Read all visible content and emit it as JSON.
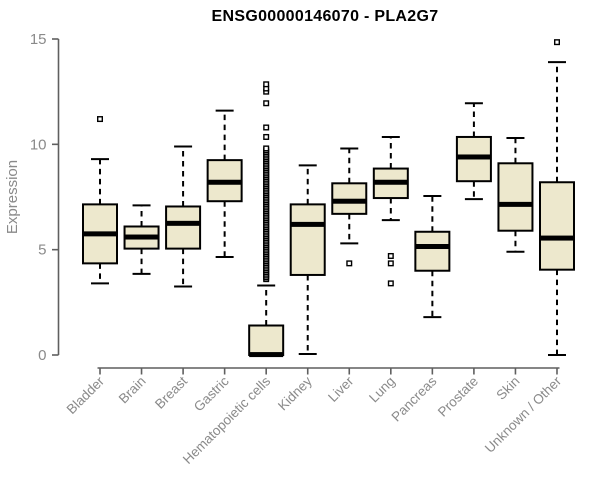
{
  "chart_data": {
    "type": "box",
    "title": "ENSG00000146070 - PLA2G7",
    "ylabel": "Expression",
    "xlabel": "",
    "ylim": [
      0,
      15
    ],
    "yticks": [
      0,
      5,
      10,
      15
    ],
    "grid": false,
    "legend": "none",
    "categories": [
      "Bladder",
      "Brain",
      "Breast",
      "Gastric",
      "Hematopoietic cells",
      "Kidney",
      "Liver",
      "Lung",
      "Pancreas",
      "Prostate",
      "Skin",
      "Unknown / Other"
    ],
    "boxes": [
      {
        "category": "Bladder",
        "whisker_low": 3.4,
        "q1": 4.35,
        "median": 5.75,
        "q3": 7.15,
        "whisker_high": 9.3,
        "outliers": [
          11.2
        ]
      },
      {
        "category": "Brain",
        "whisker_low": 3.85,
        "q1": 5.05,
        "median": 5.6,
        "q3": 6.1,
        "whisker_high": 7.1,
        "outliers": []
      },
      {
        "category": "Breast",
        "whisker_low": 3.25,
        "q1": 5.05,
        "median": 6.25,
        "q3": 7.05,
        "whisker_high": 9.9,
        "outliers": []
      },
      {
        "category": "Gastric",
        "whisker_low": 4.65,
        "q1": 7.3,
        "median": 8.2,
        "q3": 9.25,
        "whisker_high": 11.6,
        "outliers": []
      },
      {
        "category": "Hematopoietic cells",
        "whisker_low": 0,
        "q1": 0,
        "median": 0.02,
        "q3": 1.4,
        "whisker_high": 3.3,
        "outliers": [
          10.35,
          10.8,
          11.95,
          12.5,
          12.65,
          12.85
        ],
        "outliers_dense": {
          "from": 3.6,
          "to": 9.85,
          "step": 0.085
        }
      },
      {
        "category": "Kidney",
        "whisker_low": 0.05,
        "q1": 3.8,
        "median": 6.2,
        "q3": 7.15,
        "whisker_high": 9.0,
        "outliers": []
      },
      {
        "category": "Liver",
        "whisker_low": 5.3,
        "q1": 6.7,
        "median": 7.3,
        "q3": 8.15,
        "whisker_high": 9.8,
        "outliers": [
          4.35
        ]
      },
      {
        "category": "Lung",
        "whisker_low": 6.4,
        "q1": 7.45,
        "median": 8.2,
        "q3": 8.85,
        "whisker_high": 10.35,
        "outliers": [
          4.7,
          4.35,
          3.4
        ]
      },
      {
        "category": "Pancreas",
        "whisker_low": 1.8,
        "q1": 4.0,
        "median": 5.15,
        "q3": 5.85,
        "whisker_high": 7.55,
        "outliers": []
      },
      {
        "category": "Prostate",
        "whisker_low": 7.4,
        "q1": 8.25,
        "median": 9.4,
        "q3": 10.35,
        "whisker_high": 11.95,
        "outliers": []
      },
      {
        "category": "Skin",
        "whisker_low": 4.9,
        "q1": 5.9,
        "median": 7.15,
        "q3": 9.1,
        "whisker_high": 10.3,
        "outliers": []
      },
      {
        "category": "Unknown / Other",
        "whisker_low": 0,
        "q1": 4.05,
        "median": 5.55,
        "q3": 8.2,
        "whisker_high": 13.9,
        "outliers": [
          14.85
        ]
      }
    ],
    "colors": {
      "box_fill": "#ede8cd",
      "box_stroke": "#000000",
      "median": "#000000",
      "whisker": "#000000",
      "axis_line": "#5f5f5f",
      "tick_text": "#8a8a8a",
      "title_text": "#000000",
      "background": "#ffffff"
    }
  }
}
